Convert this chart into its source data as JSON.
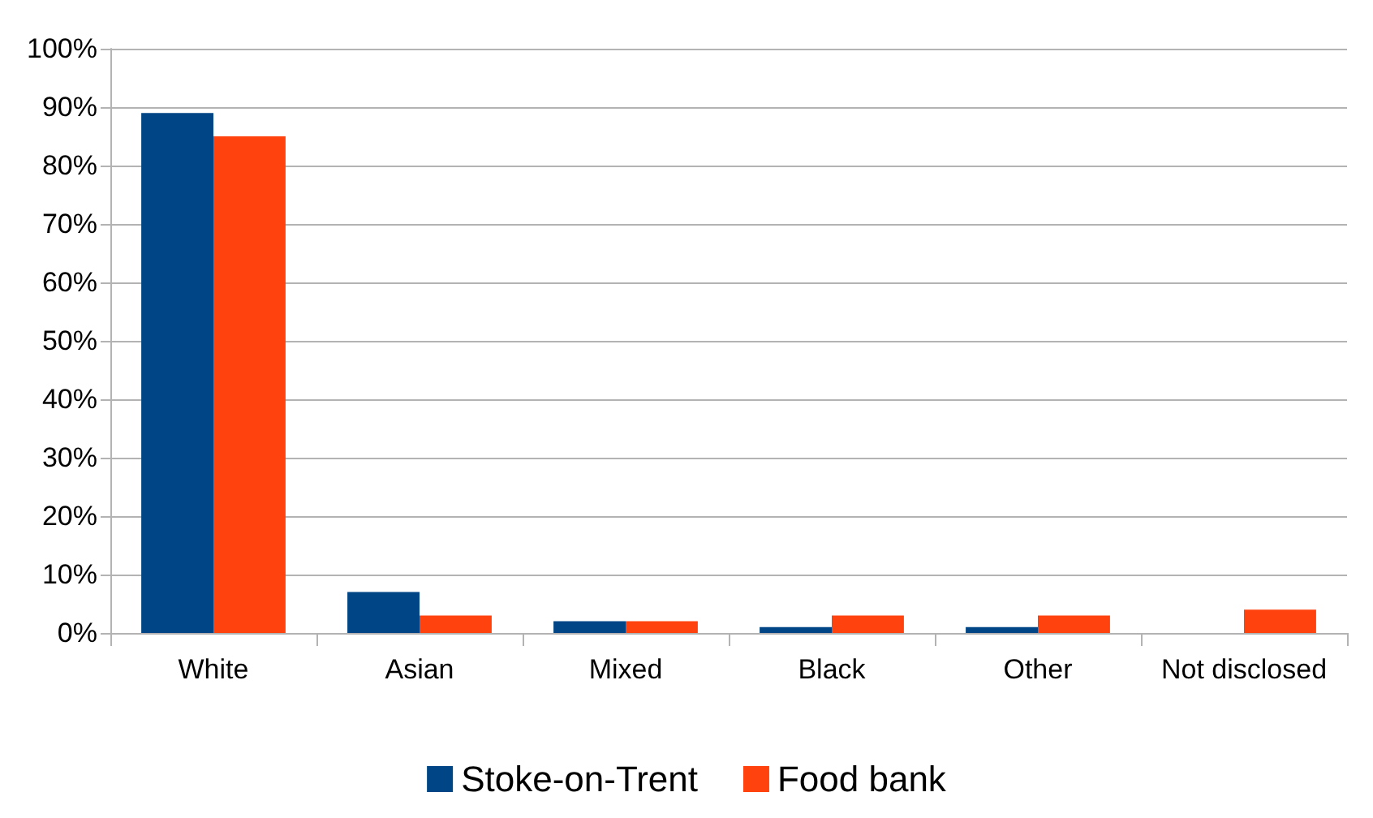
{
  "chart_data": {
    "type": "bar",
    "categories": [
      "White",
      "Asian",
      "Mixed",
      "Black",
      "Other",
      "Not disclosed"
    ],
    "series": [
      {
        "name": "Stoke-on-Trent",
        "color": "#004586",
        "values": [
          89,
          7,
          2,
          1,
          1,
          0
        ]
      },
      {
        "name": "Food bank",
        "color": "#ff420e",
        "values": [
          85,
          3,
          2,
          3,
          3,
          4
        ]
      }
    ],
    "ylim": [
      0,
      100
    ],
    "yticks": [
      {
        "value": 0,
        "label": "0%"
      },
      {
        "value": 10,
        "label": "10%"
      },
      {
        "value": 20,
        "label": "20%"
      },
      {
        "value": 30,
        "label": "30%"
      },
      {
        "value": 40,
        "label": "40%"
      },
      {
        "value": 50,
        "label": "50%"
      },
      {
        "value": 60,
        "label": "60%"
      },
      {
        "value": 70,
        "label": "70%"
      },
      {
        "value": 80,
        "label": "80%"
      },
      {
        "value": 90,
        "label": "90%"
      },
      {
        "value": 100,
        "label": "100%"
      }
    ],
    "grid": "y",
    "legend": "bottom"
  }
}
